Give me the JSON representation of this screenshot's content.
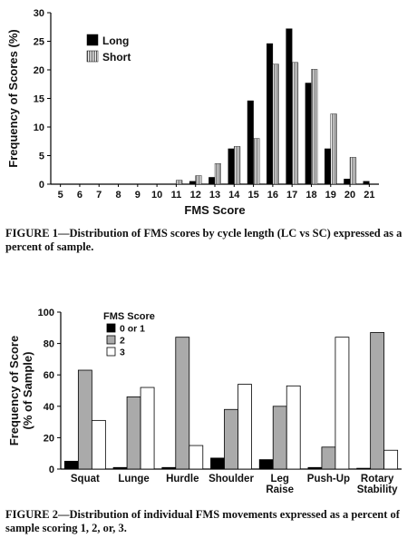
{
  "figure1": {
    "caption": "FIGURE 1—Distribution of FMS scores by cycle length (LC vs SC) expressed as a percent of sample.",
    "chart_data": {
      "type": "bar",
      "title": "",
      "xlabel": "FMS Score",
      "ylabel": "Frequency of Scores (%)",
      "categories": [
        "5",
        "6",
        "7",
        "8",
        "9",
        "10",
        "11",
        "12",
        "13",
        "14",
        "15",
        "16",
        "17",
        "18",
        "19",
        "20",
        "21"
      ],
      "ylim": [
        0,
        30
      ],
      "yticks": [
        0,
        5,
        10,
        15,
        20,
        25,
        30
      ],
      "legend": {
        "placement": "top-left"
      },
      "series": [
        {
          "name": "Long",
          "color": "#000000",
          "pattern": "solid",
          "values": [
            0,
            0,
            0,
            0,
            0,
            0,
            0,
            0.5,
            1.2,
            6.2,
            14.6,
            24.6,
            27.2,
            17.7,
            6.2,
            0.9,
            0.5
          ]
        },
        {
          "name": "Short",
          "color": "#888888",
          "pattern": "vertical-stripes",
          "values": [
            0,
            0,
            0,
            0,
            0,
            0,
            0.7,
            1.5,
            3.6,
            6.6,
            8.0,
            21.0,
            21.3,
            20.1,
            12.3,
            4.7,
            0
          ]
        }
      ]
    }
  },
  "figure2": {
    "caption": "FIGURE 2—Distribution of individual FMS movements expressed as a percent of sample scoring 1, 2, or, 3.",
    "chart_data": {
      "type": "bar",
      "title": "",
      "xlabel": "",
      "ylabel_lines": [
        "Frequency of Score",
        "(% of Sample)"
      ],
      "categories": [
        [
          "Squat"
        ],
        [
          "Lunge"
        ],
        [
          "Hurdle"
        ],
        [
          "Shoulder"
        ],
        [
          "Leg",
          "Raise"
        ],
        [
          "Push-Up"
        ],
        [
          "Rotary",
          "Stability"
        ]
      ],
      "ylim": [
        0,
        100
      ],
      "yticks": [
        0,
        20,
        40,
        60,
        80,
        100
      ],
      "legend": {
        "title": "FMS Score",
        "placement": "top-left"
      },
      "series": [
        {
          "name": "0 or 1",
          "color": "#000000",
          "values": [
            5,
            1,
            1,
            7,
            6,
            1,
            0.5
          ]
        },
        {
          "name": "2",
          "color": "#aaaaaa",
          "values": [
            63,
            46,
            84,
            38,
            40,
            14,
            87
          ]
        },
        {
          "name": "3",
          "color": "#ffffff",
          "values": [
            31,
            52,
            15,
            54,
            53,
            84,
            12
          ]
        }
      ]
    }
  }
}
